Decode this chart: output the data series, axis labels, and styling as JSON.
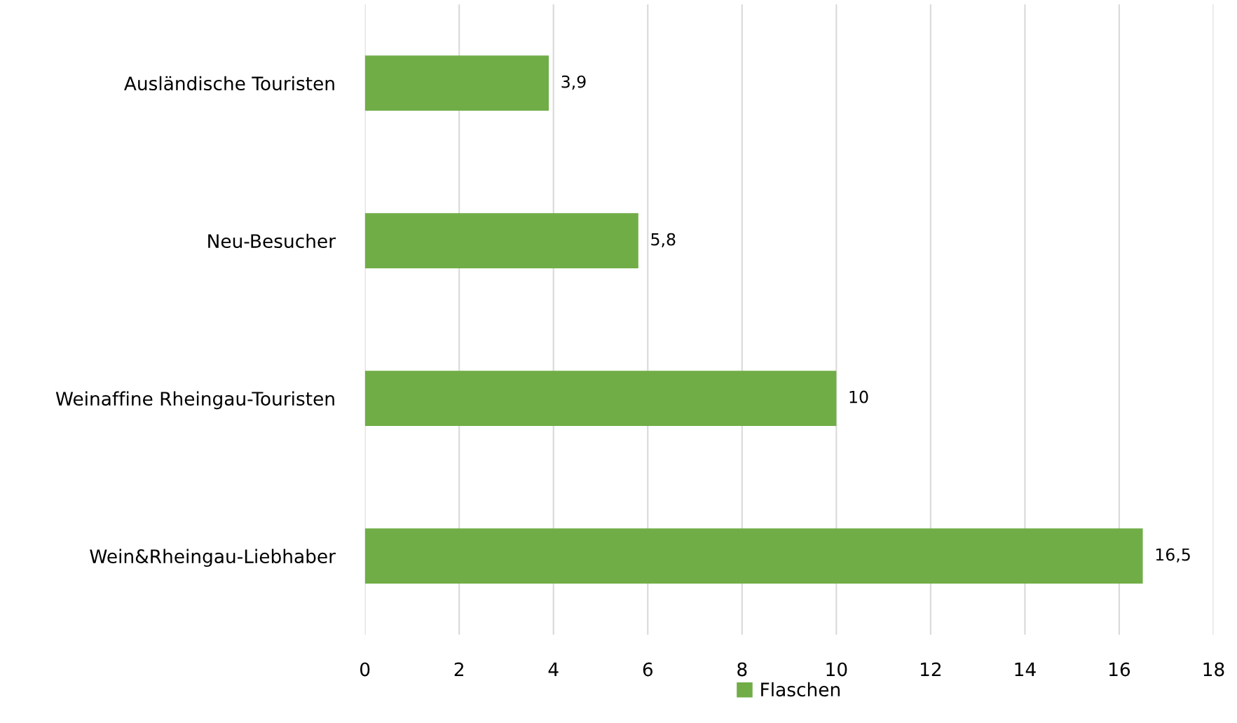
{
  "chart_data": {
    "type": "bar",
    "orientation": "horizontal",
    "categories": [
      "Ausländische Touristen",
      "Neu-Besucher",
      "Weinaffine Rheingau-Touristen",
      "Wein&Rheingau-Liebhaber"
    ],
    "series": [
      {
        "name": "Flaschen",
        "color": "#70ad47",
        "values": [
          3.9,
          5.8,
          10,
          16.5
        ],
        "value_labels": [
          "3,9",
          "5,8",
          "10",
          "16,5"
        ]
      }
    ],
    "xlim": [
      0,
      18
    ],
    "xticks": [
      0,
      2,
      4,
      6,
      8,
      10,
      12,
      14,
      16,
      18
    ],
    "grid": "x",
    "legend": "bottom"
  }
}
